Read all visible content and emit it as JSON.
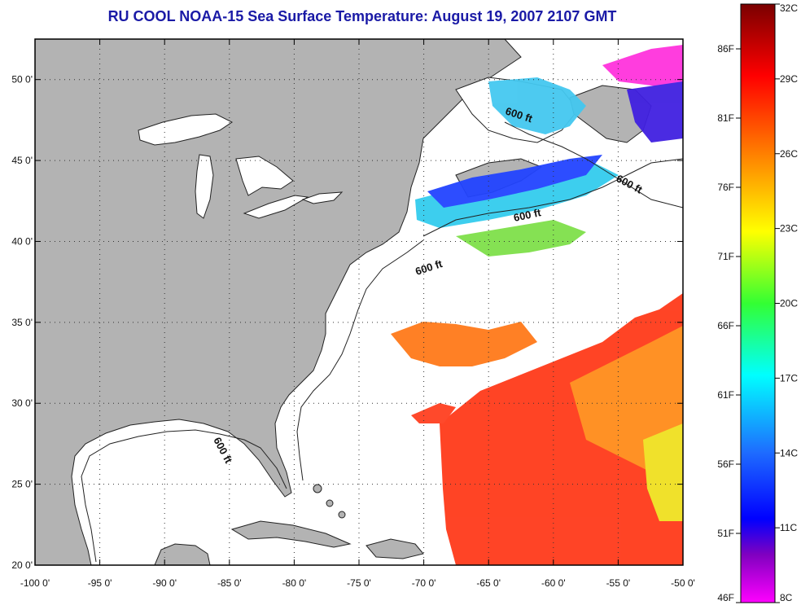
{
  "title": "RU COOL  NOAA-15  Sea Surface Temperature:  August 19, 2007 2107 GMT",
  "map": {
    "lon_range": [
      -100,
      -50
    ],
    "lat_range": [
      20,
      52.5
    ],
    "lon_labels": [
      "-100 0'",
      "-95 0'",
      "-90 0'",
      "-85 0'",
      "-80 0'",
      "-75 0'",
      "-70 0'",
      "-65 0'",
      "-60 0'",
      "-55 0'",
      "-50 0'"
    ],
    "lat_labels": [
      "20 0'",
      "25 0'",
      "30 0'",
      "35 0'",
      "40 0'",
      "45 0'",
      "50 0'"
    ],
    "isobath_labels": [
      "600 ft",
      "600 ft",
      "600 ft",
      "600 ft",
      "600 ft"
    ],
    "land_color": "#b3b3b3",
    "ocean_color": "#ffffff"
  },
  "colorbar": {
    "celsius_labels": [
      "32C",
      "29C",
      "26C",
      "23C",
      "20C",
      "17C",
      "14C",
      "11C",
      "8C"
    ],
    "fahrenheit_labels": [
      "86F",
      "81F",
      "76F",
      "71F",
      "66F",
      "61F",
      "56F",
      "51F",
      "46F"
    ],
    "gradient_colors": [
      "#8b0000",
      "#ff0000",
      "#ff8c00",
      "#ffff00",
      "#00ff00",
      "#00ffff",
      "#0000ff",
      "#800080",
      "#ff00ff"
    ]
  }
}
